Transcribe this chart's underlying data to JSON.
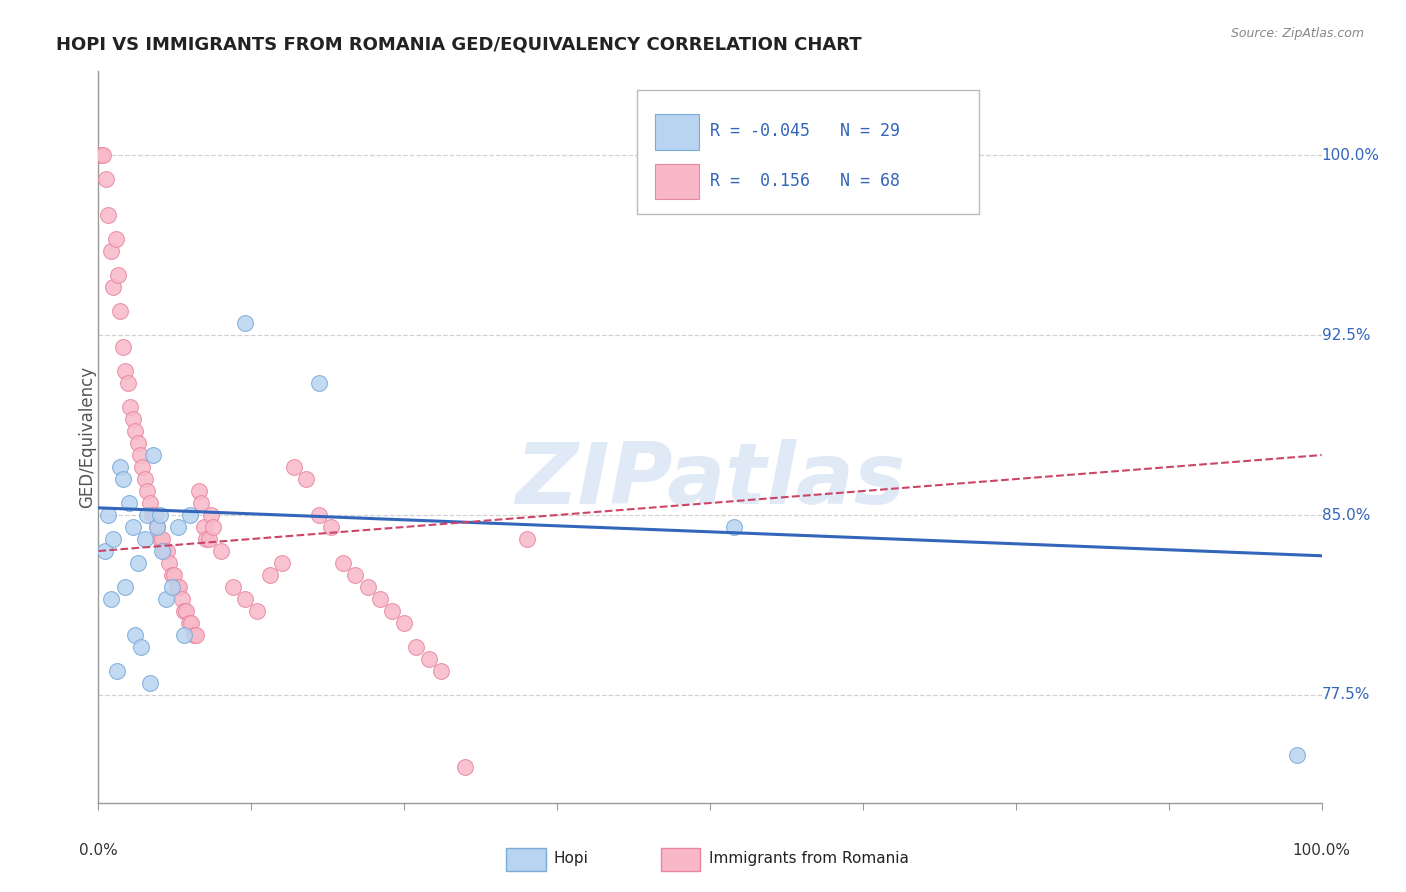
{
  "title": "HOPI VS IMMIGRANTS FROM ROMANIA GED/EQUIVALENCY CORRELATION CHART",
  "source": "Source: ZipAtlas.com",
  "ylabel": "GED/Equivalency",
  "yticks": [
    77.5,
    85.0,
    92.5,
    100.0
  ],
  "xmin": 0.0,
  "xmax": 100.0,
  "ymin": 73.0,
  "ymax": 103.5,
  "watermark": "ZIPatlas",
  "hopi_R": -0.045,
  "hopi_N": 29,
  "romania_R": 0.156,
  "romania_N": 68,
  "hopi_color": "#b8d4f0",
  "hopi_edge": "#7aaad8",
  "romania_color": "#f8b8c8",
  "romania_edge": "#e888a0",
  "hopi_line_color": "#3366bb",
  "romania_line_color": "#cc4466",
  "grid_color": "#cccccc",
  "hopi_x": [
    0.5,
    0.8,
    1.0,
    1.2,
    1.5,
    1.8,
    2.0,
    2.2,
    2.5,
    2.8,
    3.0,
    3.2,
    3.5,
    3.8,
    4.0,
    4.2,
    4.5,
    4.8,
    5.0,
    5.2,
    5.5,
    6.0,
    6.5,
    7.0,
    7.5,
    12.0,
    18.0,
    52.0,
    98.0
  ],
  "hopi_y": [
    83.5,
    85.0,
    81.5,
    84.0,
    78.5,
    87.0,
    86.5,
    82.0,
    85.5,
    84.5,
    80.0,
    83.0,
    79.5,
    84.0,
    85.0,
    78.0,
    87.5,
    84.5,
    85.0,
    83.5,
    81.5,
    82.0,
    84.5,
    80.0,
    85.0,
    93.0,
    90.5,
    84.5,
    75.0
  ],
  "romania_x": [
    0.2,
    0.4,
    0.6,
    0.8,
    1.0,
    1.2,
    1.4,
    1.6,
    1.8,
    2.0,
    2.2,
    2.4,
    2.6,
    2.8,
    3.0,
    3.2,
    3.4,
    3.6,
    3.8,
    4.0,
    4.2,
    4.4,
    4.6,
    4.8,
    5.0,
    5.2,
    5.4,
    5.6,
    5.8,
    6.0,
    6.2,
    6.4,
    6.6,
    6.8,
    7.0,
    7.2,
    7.4,
    7.6,
    7.8,
    8.0,
    8.2,
    8.4,
    8.6,
    8.8,
    9.0,
    9.2,
    9.4,
    10.0,
    11.0,
    12.0,
    13.0,
    14.0,
    15.0,
    16.0,
    17.0,
    18.0,
    19.0,
    20.0,
    21.0,
    22.0,
    23.0,
    24.0,
    25.0,
    26.0,
    27.0,
    28.0,
    30.0,
    35.0
  ],
  "romania_y": [
    100.0,
    100.0,
    99.0,
    97.5,
    96.0,
    94.5,
    96.5,
    95.0,
    93.5,
    92.0,
    91.0,
    90.5,
    89.5,
    89.0,
    88.5,
    88.0,
    87.5,
    87.0,
    86.5,
    86.0,
    85.5,
    85.0,
    85.0,
    84.5,
    84.0,
    84.0,
    83.5,
    83.5,
    83.0,
    82.5,
    82.5,
    82.0,
    82.0,
    81.5,
    81.0,
    81.0,
    80.5,
    80.5,
    80.0,
    80.0,
    86.0,
    85.5,
    84.5,
    84.0,
    84.0,
    85.0,
    84.5,
    83.5,
    82.0,
    81.5,
    81.0,
    82.5,
    83.0,
    87.0,
    86.5,
    85.0,
    84.5,
    83.0,
    82.5,
    82.0,
    81.5,
    81.0,
    80.5,
    79.5,
    79.0,
    78.5,
    74.5,
    84.0
  ]
}
